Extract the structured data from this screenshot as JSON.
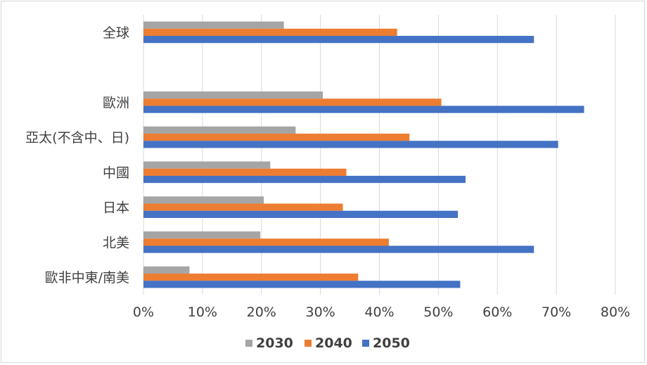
{
  "chart_data": {
    "type": "bar",
    "orientation": "horizontal",
    "categories": [
      "全球",
      "",
      "歐洲",
      "亞太(不含中、日)",
      "中國",
      "日本",
      "北美",
      "歐非中東/南美"
    ],
    "series": [
      {
        "name": "2030",
        "color": "#a5a5a5",
        "values": [
          23.8,
          null,
          30.4,
          25.8,
          21.5,
          20.4,
          19.8,
          7.8
        ]
      },
      {
        "name": "2040",
        "color": "#ed7d31",
        "values": [
          43.0,
          null,
          50.5,
          45.1,
          34.4,
          33.8,
          41.6,
          36.4
        ]
      },
      {
        "name": "2050",
        "color": "#4472c4",
        "values": [
          66.2,
          null,
          74.7,
          70.3,
          54.6,
          53.3,
          66.2,
          53.7
        ]
      }
    ],
    "xlim": [
      0,
      80
    ],
    "x_ticks": [
      "0%",
      "10%",
      "20%",
      "30%",
      "40%",
      "50%",
      "60%",
      "70%",
      "80%"
    ],
    "grid": true,
    "legend_position": "bottom"
  }
}
